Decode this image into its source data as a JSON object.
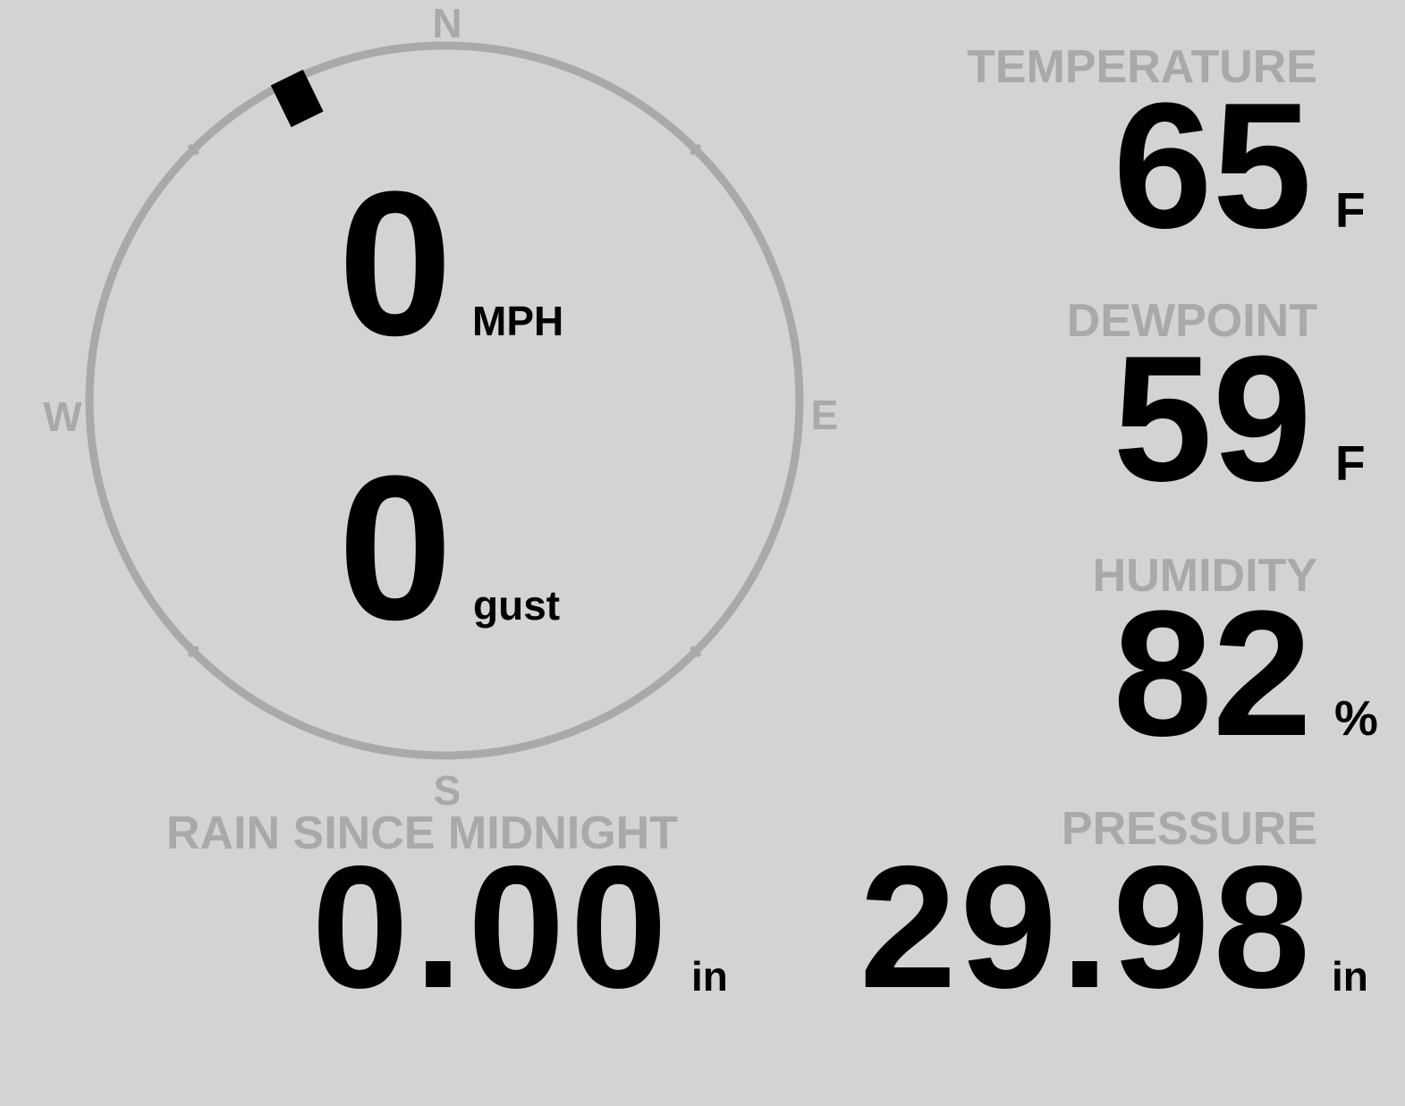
{
  "wind": {
    "speed": "0",
    "speed_unit": "MPH",
    "gust": "0",
    "gust_unit": "gust",
    "direction_deg": 334,
    "compass": {
      "n": "N",
      "e": "E",
      "s": "S",
      "w": "W"
    }
  },
  "temperature": {
    "label": "TEMPERATURE",
    "value": "65",
    "unit": "F"
  },
  "dewpoint": {
    "label": "DEWPOINT",
    "value": "59",
    "unit": "F"
  },
  "humidity": {
    "label": "HUMIDITY",
    "value": "82",
    "unit": "%"
  },
  "pressure": {
    "label": "PRESSURE",
    "value": "29.98",
    "unit": "in"
  },
  "rain": {
    "label": "RAIN SINCE MIDNIGHT",
    "value": "0.00",
    "unit": "in"
  },
  "colors": {
    "background": "#d3d3d3",
    "muted": "#a9a9a9",
    "value": "#000000"
  }
}
